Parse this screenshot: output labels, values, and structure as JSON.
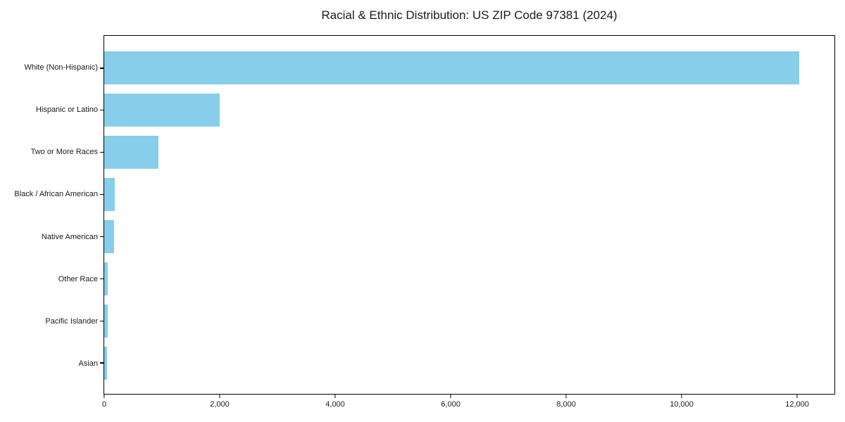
{
  "chart_data": {
    "type": "bar",
    "orientation": "horizontal",
    "title": "Racial & Ethnic Distribution: US ZIP Code 97381 (2024)",
    "categories": [
      "White (Non-Hispanic)",
      "Hispanic or Latino",
      "Two or More Races",
      "Black / African American",
      "Native American",
      "Other Race",
      "Pacific Islander",
      "Asian"
    ],
    "values": [
      12030,
      2005,
      935,
      185,
      165,
      60,
      55,
      45
    ],
    "xlabel": "",
    "ylabel": "",
    "xlim": [
      0,
      12645
    ],
    "x_ticks": [
      0,
      2000,
      4000,
      6000,
      8000,
      10000,
      12000
    ],
    "x_tick_labels": [
      "0",
      "2,000",
      "4,000",
      "6,000",
      "8,000",
      "10,000",
      "12,000"
    ],
    "grid": false,
    "legend": null,
    "bar_color": "#87CEEB",
    "background_color": "#ffffff",
    "text_color": "#1a1a1a"
  }
}
